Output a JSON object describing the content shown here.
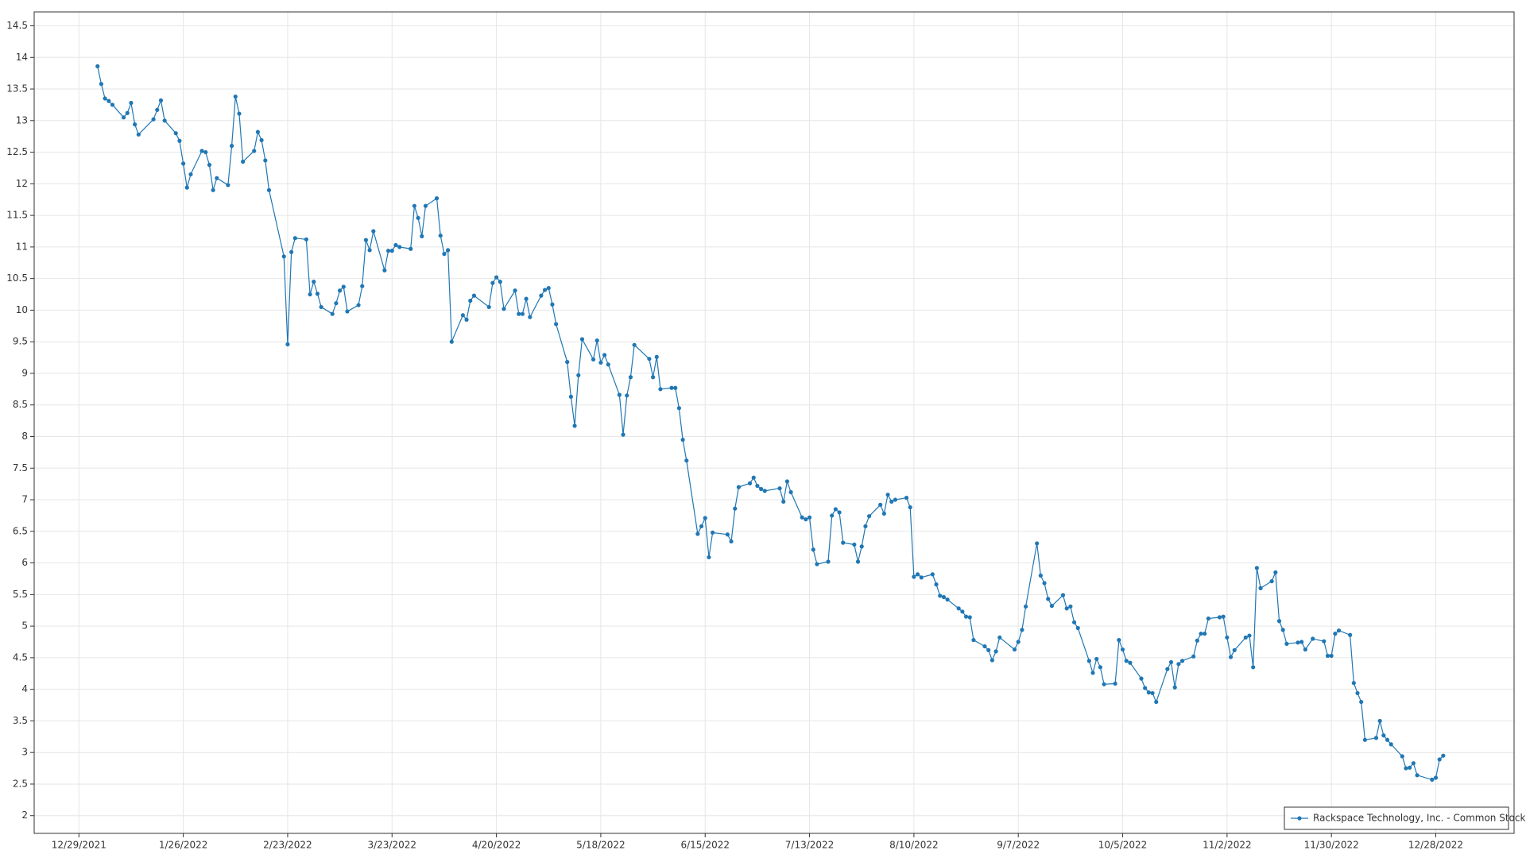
{
  "chart_data": {
    "type": "line",
    "xlim": [
      "12/17/2021",
      "1/18/2023"
    ],
    "xticks": [
      "12/29/2021",
      "1/26/2022",
      "2/23/2022",
      "3/23/2022",
      "4/20/2022",
      "5/18/2022",
      "6/15/2022",
      "7/13/2022",
      "8/10/2022",
      "9/7/2022",
      "10/5/2022",
      "11/2/2022",
      "11/30/2022",
      "12/28/2022"
    ],
    "ylim": [
      1.72,
      14.72
    ],
    "yticks": [
      2,
      2.5,
      3,
      3.5,
      4,
      4.5,
      5,
      5.5,
      6,
      6.5,
      7,
      7.5,
      8,
      8.5,
      9,
      9.5,
      10,
      10.5,
      11,
      11.5,
      12,
      12.5,
      13,
      13.5,
      14,
      14.5
    ],
    "grid": true,
    "legend": "lower right",
    "x": [
      "1/3/2022",
      "1/4/2022",
      "1/5/2022",
      "1/6/2022",
      "1/7/2022",
      "1/10/2022",
      "1/11/2022",
      "1/12/2022",
      "1/13/2022",
      "1/14/2022",
      "1/18/2022",
      "1/19/2022",
      "1/20/2022",
      "1/21/2022",
      "1/24/2022",
      "1/25/2022",
      "1/26/2022",
      "1/27/2022",
      "1/28/2022",
      "1/31/2022",
      "2/1/2022",
      "2/2/2022",
      "2/3/2022",
      "2/4/2022",
      "2/7/2022",
      "2/8/2022",
      "2/9/2022",
      "2/10/2022",
      "2/11/2022",
      "2/14/2022",
      "2/15/2022",
      "2/16/2022",
      "2/17/2022",
      "2/18/2022",
      "2/22/2022",
      "2/23/2022",
      "2/24/2022",
      "2/25/2022",
      "2/28/2022",
      "3/1/2022",
      "3/2/2022",
      "3/3/2022",
      "3/4/2022",
      "3/7/2022",
      "3/8/2022",
      "3/9/2022",
      "3/10/2022",
      "3/11/2022",
      "3/14/2022",
      "3/15/2022",
      "3/16/2022",
      "3/17/2022",
      "3/18/2022",
      "3/21/2022",
      "3/22/2022",
      "3/23/2022",
      "3/24/2022",
      "3/25/2022",
      "3/28/2022",
      "3/29/2022",
      "3/30/2022",
      "3/31/2022",
      "4/1/2022",
      "4/4/2022",
      "4/5/2022",
      "4/6/2022",
      "4/7/2022",
      "4/8/2022",
      "4/11/2022",
      "4/12/2022",
      "4/13/2022",
      "4/14/2022",
      "4/18/2022",
      "4/19/2022",
      "4/20/2022",
      "4/21/2022",
      "4/22/2022",
      "4/25/2022",
      "4/26/2022",
      "4/27/2022",
      "4/28/2022",
      "4/29/2022",
      "5/2/2022",
      "5/3/2022",
      "5/4/2022",
      "5/5/2022",
      "5/6/2022",
      "5/9/2022",
      "5/10/2022",
      "5/11/2022",
      "5/12/2022",
      "5/13/2022",
      "5/16/2022",
      "5/17/2022",
      "5/18/2022",
      "5/19/2022",
      "5/20/2022",
      "5/23/2022",
      "5/24/2022",
      "5/25/2022",
      "5/26/2022",
      "5/27/2022",
      "5/31/2022",
      "6/1/2022",
      "6/2/2022",
      "6/3/2022",
      "6/6/2022",
      "6/7/2022",
      "6/8/2022",
      "6/9/2022",
      "6/10/2022",
      "6/13/2022",
      "6/14/2022",
      "6/15/2022",
      "6/16/2022",
      "6/17/2022",
      "6/21/2022",
      "6/22/2022",
      "6/23/2022",
      "6/24/2022",
      "6/27/2022",
      "6/28/2022",
      "6/29/2022",
      "6/30/2022",
      "7/1/2022",
      "7/5/2022",
      "7/6/2022",
      "7/7/2022",
      "7/8/2022",
      "7/11/2022",
      "7/12/2022",
      "7/13/2022",
      "7/14/2022",
      "7/15/2022",
      "7/18/2022",
      "7/19/2022",
      "7/20/2022",
      "7/21/2022",
      "7/22/2022",
      "7/25/2022",
      "7/26/2022",
      "7/27/2022",
      "7/28/2022",
      "7/29/2022",
      "8/1/2022",
      "8/2/2022",
      "8/3/2022",
      "8/4/2022",
      "8/5/2022",
      "8/8/2022",
      "8/9/2022",
      "8/10/2022",
      "8/11/2022",
      "8/12/2022",
      "8/15/2022",
      "8/16/2022",
      "8/17/2022",
      "8/18/2022",
      "8/19/2022",
      "8/22/2022",
      "8/23/2022",
      "8/24/2022",
      "8/25/2022",
      "8/26/2022",
      "8/29/2022",
      "8/30/2022",
      "8/31/2022",
      "9/1/2022",
      "9/2/2022",
      "9/6/2022",
      "9/7/2022",
      "9/8/2022",
      "9/9/2022",
      "9/12/2022",
      "9/13/2022",
      "9/14/2022",
      "9/15/2022",
      "9/16/2022",
      "9/19/2022",
      "9/20/2022",
      "9/21/2022",
      "9/22/2022",
      "9/23/2022",
      "9/26/2022",
      "9/27/2022",
      "9/28/2022",
      "9/29/2022",
      "9/30/2022",
      "10/3/2022",
      "10/4/2022",
      "10/5/2022",
      "10/6/2022",
      "10/7/2022",
      "10/10/2022",
      "10/11/2022",
      "10/12/2022",
      "10/13/2022",
      "10/14/2022",
      "10/17/2022",
      "10/18/2022",
      "10/19/2022",
      "10/20/2022",
      "10/21/2022",
      "10/24/2022",
      "10/25/2022",
      "10/26/2022",
      "10/27/2022",
      "10/28/2022",
      "10/31/2022",
      "11/1/2022",
      "11/2/2022",
      "11/3/2022",
      "11/4/2022",
      "11/7/2022",
      "11/8/2022",
      "11/9/2022",
      "11/10/2022",
      "11/11/2022",
      "11/14/2022",
      "11/15/2022",
      "11/16/2022",
      "11/17/2022",
      "11/18/2022",
      "11/21/2022",
      "11/22/2022",
      "11/23/2022",
      "11/25/2022",
      "11/28/2022",
      "11/29/2022",
      "11/30/2022",
      "12/1/2022",
      "12/2/2022",
      "12/5/2022",
      "12/6/2022",
      "12/7/2022",
      "12/8/2022",
      "12/9/2022",
      "12/12/2022",
      "12/13/2022",
      "12/14/2022",
      "12/15/2022",
      "12/16/2022",
      "12/19/2022",
      "12/20/2022",
      "12/21/2022",
      "12/22/2022",
      "12/23/2022",
      "12/27/2022",
      "12/28/2022",
      "12/29/2022",
      "12/30/2022"
    ],
    "series": [
      {
        "name": "Rackspace Technology, Inc. - Common Stock",
        "color": "#2077b4",
        "values": [
          13.86,
          13.58,
          13.35,
          13.31,
          13.25,
          13.05,
          13.12,
          13.28,
          12.94,
          12.78,
          13.02,
          13.17,
          13.32,
          13.0,
          12.8,
          12.68,
          12.32,
          11.94,
          12.15,
          12.52,
          12.5,
          12.3,
          11.9,
          12.09,
          11.98,
          12.6,
          13.38,
          13.11,
          12.35,
          12.52,
          12.82,
          12.69,
          12.37,
          11.9,
          10.85,
          9.46,
          10.92,
          11.14,
          11.12,
          10.25,
          10.45,
          10.26,
          10.05,
          9.94,
          10.11,
          10.31,
          10.37,
          9.98,
          10.08,
          10.38,
          11.11,
          10.95,
          11.25,
          10.63,
          10.94,
          10.94,
          11.03,
          11.0,
          10.97,
          11.65,
          11.46,
          11.17,
          11.65,
          11.77,
          11.18,
          10.89,
          10.95,
          9.5,
          9.92,
          9.85,
          10.15,
          10.23,
          10.05,
          10.43,
          10.52,
          10.45,
          10.02,
          10.31,
          9.94,
          9.94,
          10.18,
          9.89,
          10.23,
          10.32,
          10.35,
          10.09,
          9.78,
          9.18,
          8.63,
          8.17,
          8.97,
          9.54,
          9.22,
          9.52,
          9.17,
          9.29,
          9.14,
          8.66,
          8.03,
          8.65,
          8.94,
          9.45,
          9.23,
          8.94,
          9.26,
          8.75,
          8.77,
          8.77,
          8.45,
          7.95,
          7.62,
          6.46,
          6.58,
          6.71,
          6.09,
          6.48,
          6.45,
          6.34,
          6.86,
          7.2,
          7.26,
          7.35,
          7.22,
          7.17,
          7.14,
          7.18,
          6.97,
          7.29,
          7.12,
          6.72,
          6.69,
          6.72,
          6.21,
          5.98,
          6.02,
          6.75,
          6.85,
          6.8,
          6.32,
          6.29,
          6.02,
          6.26,
          6.58,
          6.74,
          6.92,
          6.78,
          7.08,
          6.97,
          7.0,
          7.03,
          6.88,
          5.78,
          5.82,
          5.77,
          5.82,
          5.66,
          5.48,
          5.46,
          5.42,
          5.28,
          5.23,
          5.15,
          5.14,
          4.78,
          4.68,
          4.62,
          4.46,
          4.6,
          4.82,
          4.63,
          4.75,
          4.94,
          5.31,
          6.31,
          5.8,
          5.68,
          5.43,
          5.32,
          5.49,
          5.28,
          5.31,
          5.06,
          4.97,
          4.45,
          4.26,
          4.48,
          4.35,
          4.08,
          4.09,
          4.78,
          4.63,
          4.45,
          4.42,
          4.17,
          4.02,
          3.95,
          3.94,
          3.8,
          4.32,
          4.43,
          4.03,
          4.4,
          4.45,
          4.52,
          4.77,
          4.88,
          4.88,
          5.12,
          5.14,
          5.15,
          4.82,
          4.51,
          4.62,
          4.82,
          4.85,
          4.35,
          5.92,
          5.6,
          5.71,
          5.85,
          5.08,
          4.94,
          4.72,
          4.74,
          4.75,
          4.63,
          4.8,
          4.76,
          4.53,
          4.53,
          4.88,
          4.93,
          4.86,
          4.1,
          3.94,
          3.8,
          3.2,
          3.23,
          3.5,
          3.27,
          3.2,
          3.13,
          2.94,
          2.75,
          2.76,
          2.83,
          2.64,
          2.57,
          2.6,
          2.89,
          2.95
        ]
      }
    ]
  }
}
